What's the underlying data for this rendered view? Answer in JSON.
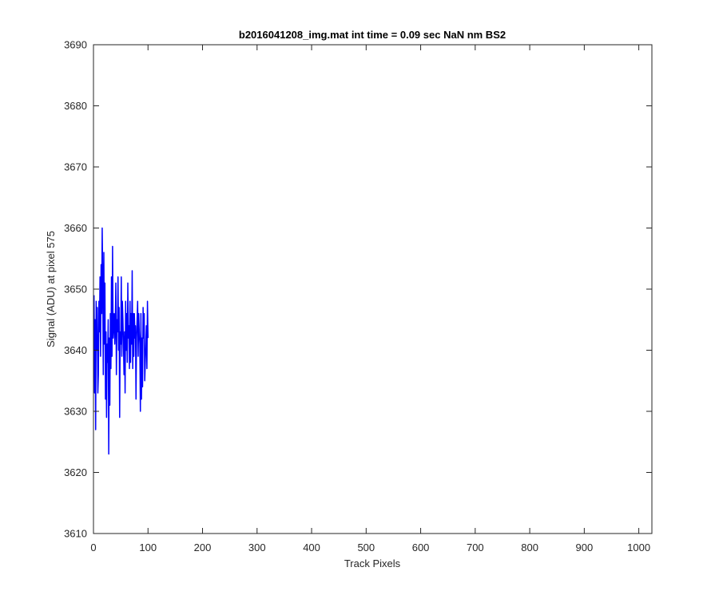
{
  "chart_data": {
    "type": "line",
    "title": "b2016041208_img.mat int time = 0.09 sec  NaN nm BS2",
    "xlabel": "Track Pixels",
    "ylabel": "Signal (ADU) at pixel 575",
    "xlim": [
      0,
      1024
    ],
    "ylim": [
      3610,
      3690
    ],
    "xticks": [
      "0",
      "100",
      "200",
      "300",
      "400",
      "500",
      "600",
      "700",
      "800",
      "900",
      "1000"
    ],
    "yticks": [
      "3610",
      "3620",
      "3630",
      "3640",
      "3650",
      "3660",
      "3670",
      "3680",
      "3690"
    ],
    "grid": false,
    "legend": "none",
    "series": [
      {
        "color": "#0000ff",
        "x_start": 1,
        "x_step": 1,
        "values": [
          3649,
          3633,
          3645,
          3627,
          3648,
          3640,
          3647,
          3633,
          3636,
          3648,
          3643,
          3652,
          3639,
          3654,
          3646,
          3660,
          3651,
          3636,
          3656,
          3641,
          3651,
          3632,
          3643,
          3629,
          3641,
          3638,
          3645,
          3623,
          3642,
          3631,
          3646,
          3637,
          3652,
          3639,
          3657,
          3642,
          3644,
          3646,
          3641,
          3644,
          3651,
          3636,
          3645,
          3643,
          3652,
          3640,
          3647,
          3629,
          3643,
          3641,
          3652,
          3639,
          3648,
          3645,
          3641,
          3636,
          3643,
          3633,
          3648,
          3640,
          3646,
          3638,
          3651,
          3642,
          3644,
          3637,
          3648,
          3638,
          3646,
          3641,
          3653,
          3637,
          3646,
          3639,
          3646,
          3642,
          3644,
          3632,
          3642,
          3645,
          3648,
          3639,
          3646,
          3643,
          3641,
          3630,
          3646,
          3632,
          3642,
          3634,
          3647,
          3642,
          3646,
          3635,
          3638,
          3641,
          3644,
          3637,
          3648,
          3642
        ],
        "values_note": ""
      }
    ]
  }
}
